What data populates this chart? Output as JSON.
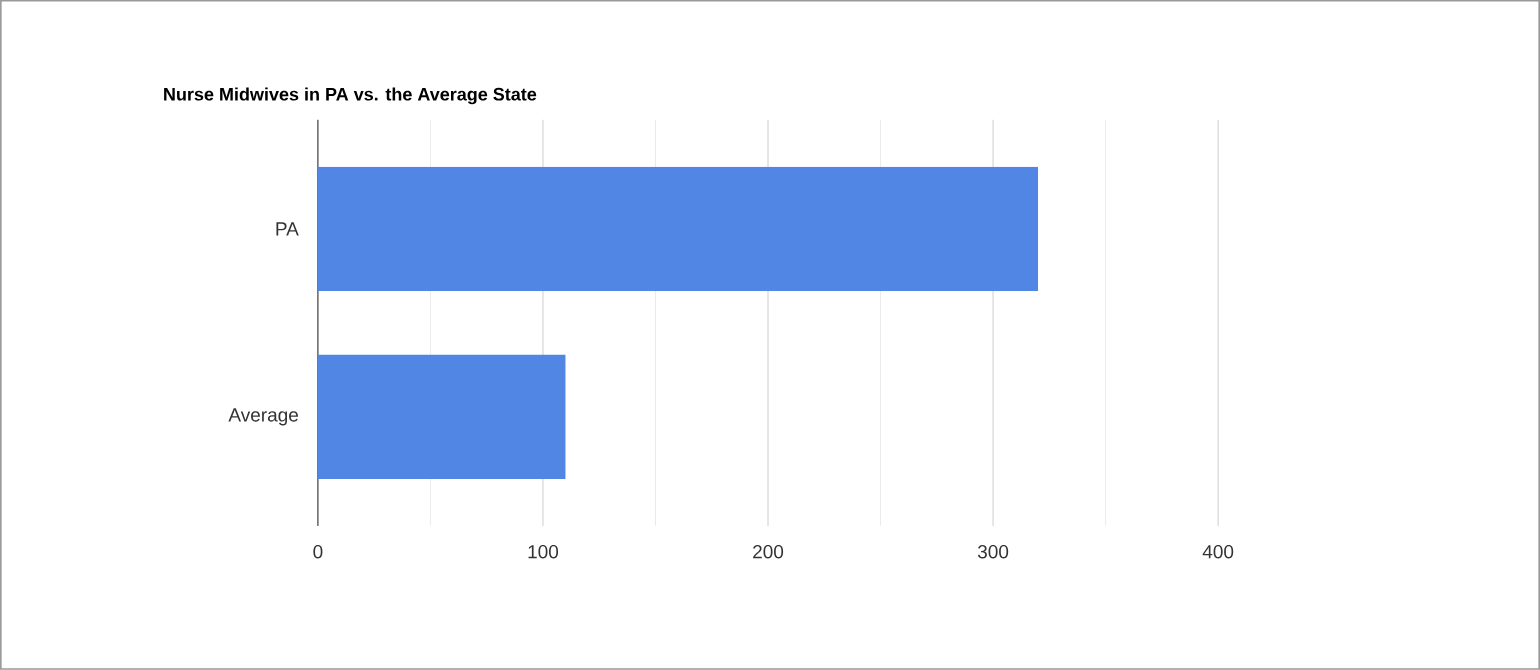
{
  "chart_data": {
    "type": "bar",
    "orientation": "horizontal",
    "title": "Nurse Midwives in PA vs. the Average State",
    "categories": [
      "PA",
      "Average"
    ],
    "values": [
      320,
      110
    ],
    "color": "#5286e5",
    "xlim": [
      0,
      400
    ],
    "xticks": [
      0,
      100,
      200,
      300,
      400
    ],
    "grid": "x"
  }
}
